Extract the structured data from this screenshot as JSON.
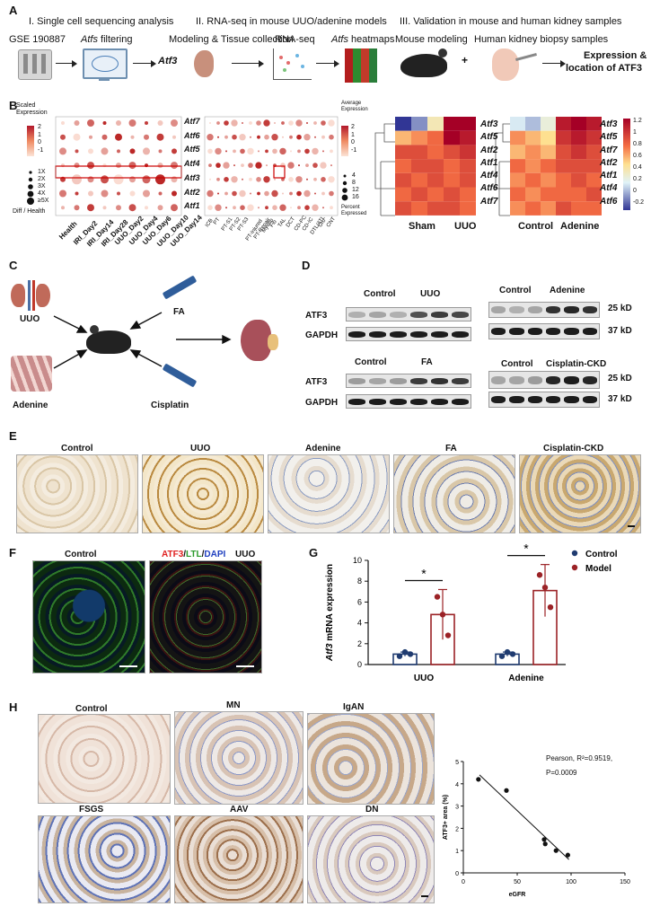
{
  "panel_labels": {
    "a": "A",
    "b": "B",
    "c": "C",
    "d": "D",
    "e": "E",
    "f": "F",
    "g": "G",
    "h": "H"
  },
  "panel_a": {
    "step1_title": "I. Single cell sequencing analysis",
    "step2_title": "II. RNA-seq in mouse UUO/adenine models",
    "step3_title": "III. Validation in mouse and human kidney samples",
    "gse": "GSE 190887",
    "atfs_filtering_gene": "Atfs",
    "atfs_filtering_word": "filtering",
    "atf3": "Atf3",
    "modeling": "Modeling & Tissue collection",
    "rnaseq": "RNA-seq",
    "heatmaps_gene": "Atfs",
    "heatmaps_word": "heatmaps",
    "mouse_modeling": "Mouse modeling",
    "human_biopsy": "Human kidney biopsy samples",
    "plus": "+",
    "expression_line1": "Expression &",
    "expression_line2": "location of ATF3"
  },
  "panel_b": {
    "scaled_expression_title": "Scaled\nExpression",
    "scaled_ticks": [
      "2",
      "1",
      "0",
      "-1"
    ],
    "size_legend": [
      "1X",
      "2X",
      "3X",
      "4X",
      "≥5X"
    ],
    "diff_health": "Diff / Health",
    "avg_expression_title": "Average\nExpression",
    "avg_ticks": [
      "2",
      "1",
      "0",
      "-1"
    ],
    "pct_legend": [
      "4",
      "8",
      "12",
      "16"
    ],
    "percent_expressed": "Percent\nExpressed",
    "genes_dot": [
      "Atf7",
      "Atf6",
      "Atf5",
      "Atf4",
      "Atf3",
      "Atf2",
      "Atf1"
    ],
    "conditions": [
      "Health",
      "IRI_Day2",
      "IRI_Day14",
      "IRI_Day28",
      "UUO_Day2",
      "UUO_Day4",
      "UUO_Day6",
      "UUO_Day10",
      "UUO_Day14"
    ],
    "cell_types": [
      "ICB",
      "PT",
      "PT-S1",
      "PT-S2",
      "PT-S3",
      "PT-Injured",
      "PT-Repair",
      "Myofib",
      "Fib",
      "TAL",
      "DCT",
      "CD-PC",
      "CD-IC",
      "DTL/ATL",
      "Uro",
      "CNT"
    ],
    "heatmap1_genes": [
      "Atf3",
      "Atf5",
      "Atf2",
      "Atf1",
      "Atf4",
      "Atf6",
      "Atf7"
    ],
    "heatmap1_groups": [
      "Sham",
      "UUO"
    ],
    "heatmap2_genes": [
      "Atf3",
      "Atf5",
      "Atf7",
      "Atf2",
      "Atf1",
      "Atf4",
      "Atf6"
    ],
    "heatmap2_groups": [
      "Control",
      "Adenine"
    ],
    "colorbar_ticks": [
      "1.2",
      "1",
      "0.8",
      "0.6",
      "0.4",
      "0.2",
      "0",
      "-0.2"
    ]
  },
  "panel_c": {
    "uuo": "UUO",
    "fa": "FA",
    "adenine": "Adenine",
    "cisplatin": "Cisplatin"
  },
  "panel_d": {
    "control1": "Control",
    "uuo": "UUO",
    "control2": "Control",
    "adenine": "Adenine",
    "control3": "Control",
    "fa": "FA",
    "control4": "Control",
    "cisplatin": "Cisplatin-CKD",
    "atf3": "ATF3",
    "gapdh": "GAPDH",
    "kd25": "25 kD",
    "kd37": "37 kD"
  },
  "panel_e": {
    "titles": [
      "Control",
      "UUO",
      "Adenine",
      "FA",
      "Cisplatin-CKD"
    ]
  },
  "panel_f": {
    "control": "Control",
    "atf3": "ATF3",
    "slash1": "/",
    "ltl": "LTL",
    "slash2": "/",
    "dapi": "DAPI",
    "uuo": "UUO"
  },
  "panel_h": {
    "titles": [
      "Control",
      "MN",
      "IgAN",
      "FSGS",
      "AAV",
      "DN"
    ],
    "stat1": "Pearson, R²=0.9519,",
    "stat2": "P=0.0009"
  },
  "chart_data": [
    {
      "type": "bar",
      "ylabel_gene": "Atf3",
      "ylabel": "mRNA expression",
      "categories": [
        "UUO",
        "Adenine"
      ],
      "ylim": [
        0,
        10
      ],
      "yticks": [
        "0",
        "2",
        "4",
        "6",
        "8",
        "10"
      ],
      "series": [
        {
          "name": "Control",
          "color": "#1f3b70",
          "values": [
            1.0,
            1.0
          ],
          "points": [
            [
              0.8,
              1.2,
              1.0
            ],
            [
              0.8,
              1.2,
              1.0
            ]
          ],
          "err": [
            0.2,
            0.2
          ]
        },
        {
          "name": "Model",
          "color": "#9b2226",
          "values": [
            4.8,
            7.1
          ],
          "points": [
            [
              6.5,
              4.8,
              2.8
            ],
            [
              8.6,
              7.4,
              5.5
            ]
          ],
          "err": [
            2.4,
            2.5
          ]
        }
      ],
      "significance": [
        "*",
        "*"
      ],
      "legend": "top-right"
    },
    {
      "type": "scatter",
      "xlabel": "eGFR",
      "ylabel": "ATF3+ area (%)",
      "xlim": [
        0,
        150
      ],
      "ylim": [
        0,
        5
      ],
      "xticks": [
        "0",
        "50",
        "100",
        "150"
      ],
      "yticks": [
        "0",
        "1",
        "2",
        "3",
        "4",
        "5"
      ],
      "points": [
        [
          14,
          4.2
        ],
        [
          40,
          3.7
        ],
        [
          75,
          1.5
        ],
        [
          76,
          1.3
        ],
        [
          86,
          1.0
        ],
        [
          97,
          0.8
        ]
      ],
      "trend": [
        [
          15,
          4.4
        ],
        [
          98,
          0.6
        ]
      ]
    }
  ]
}
